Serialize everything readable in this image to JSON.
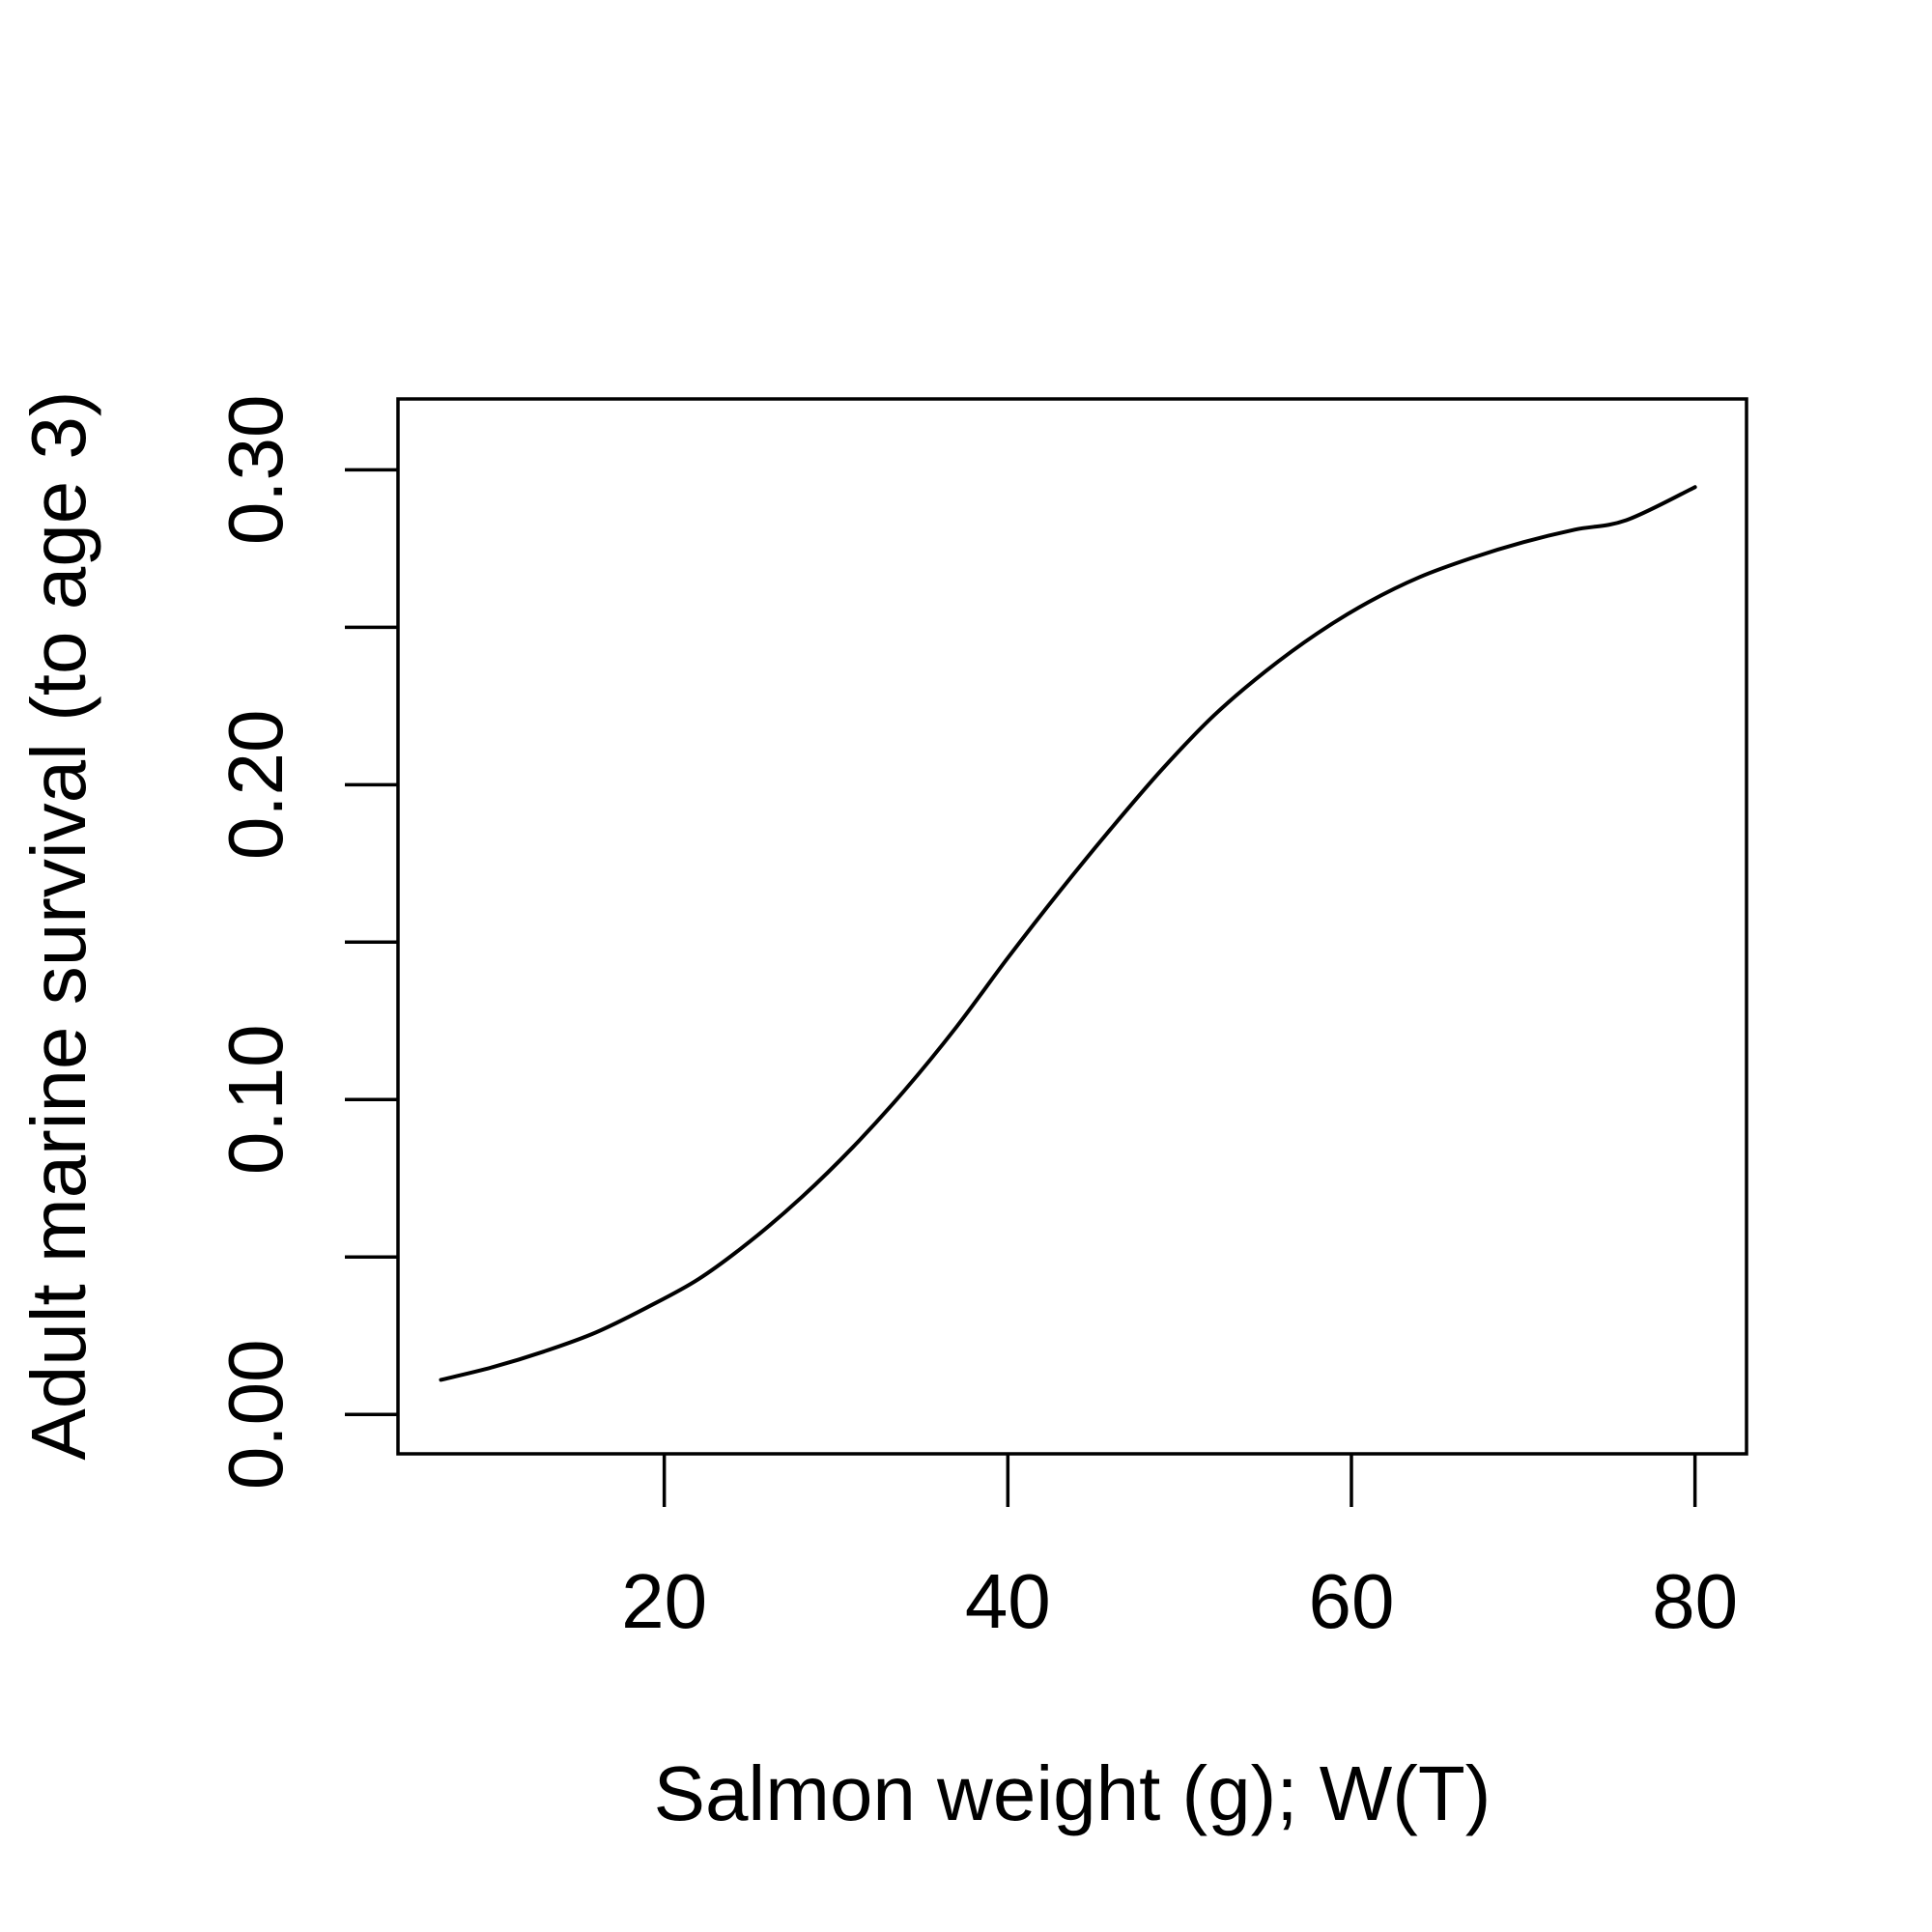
{
  "chart_data": {
    "type": "line",
    "title": "",
    "xlabel": "Salmon weight (g); W(T)",
    "ylabel": "Adult marine survival (to age 3)",
    "xlim": [
      4.5,
      83
    ],
    "ylim": [
      -0.0125,
      0.3225
    ],
    "x_ticks": [
      20,
      40,
      60,
      80
    ],
    "x_tick_labels": [
      "20",
      "40",
      "60",
      "80"
    ],
    "y_ticks": [
      0,
      0.05,
      0.1,
      0.15,
      0.2,
      0.25,
      0.3
    ],
    "y_tick_labels": [
      "0.00",
      "",
      "0.10",
      "",
      "0.20",
      "",
      "0.30"
    ],
    "grid": false,
    "legend": "none",
    "line_color": "#000000",
    "series": [
      {
        "x": [
          7,
          10,
          13,
          16,
          19,
          22,
          25,
          28,
          31,
          34,
          37,
          40,
          43,
          46,
          49,
          52,
          55,
          58,
          61,
          64,
          67,
          70,
          73,
          76,
          80
        ],
        "y": [
          0.011,
          0.015,
          0.02,
          0.026,
          0.034,
          0.043,
          0.055,
          0.069,
          0.085,
          0.103,
          0.123,
          0.145,
          0.166,
          0.186,
          0.205,
          0.222,
          0.236,
          0.248,
          0.258,
          0.266,
          0.272,
          0.277,
          0.281,
          0.284,
          0.2945
        ]
      }
    ]
  }
}
